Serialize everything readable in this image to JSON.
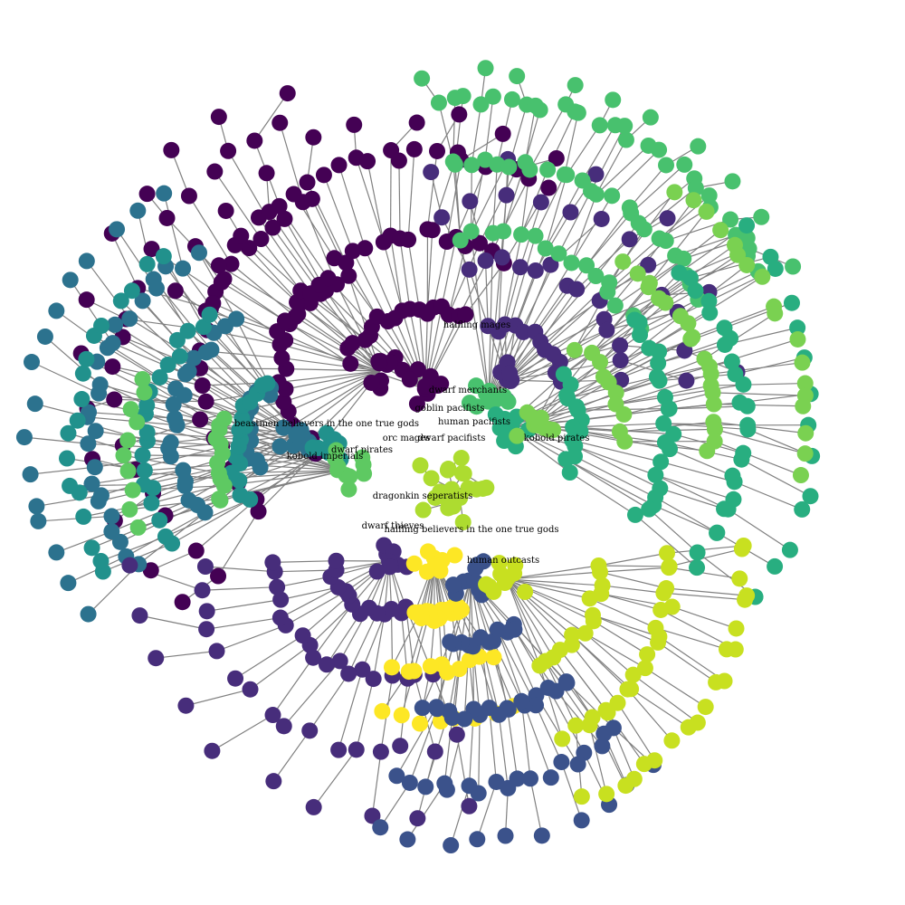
{
  "graph": {
    "edge_color": "#808080",
    "node_palette": [
      "#440154",
      "#472d7b",
      "#3b528b",
      "#2c728e",
      "#21918c",
      "#28ae80",
      "#5ec962",
      "#addc30",
      "#fde725",
      "#48c16e",
      "#7ad151",
      "#c8e020"
    ],
    "labels": [
      "halfling mages",
      "dwarf merchants",
      "goblin pacifists",
      "human pacifists",
      "beastmen believers in the one true gods",
      "orc mages",
      "dwarf pacifists",
      "kobold pirates",
      "dwarf pirates",
      "kobold imperials",
      "dragonkin seperatists",
      "dwarf thieves",
      "halfling believers in the one true gods",
      "human outcasts"
    ]
  }
}
